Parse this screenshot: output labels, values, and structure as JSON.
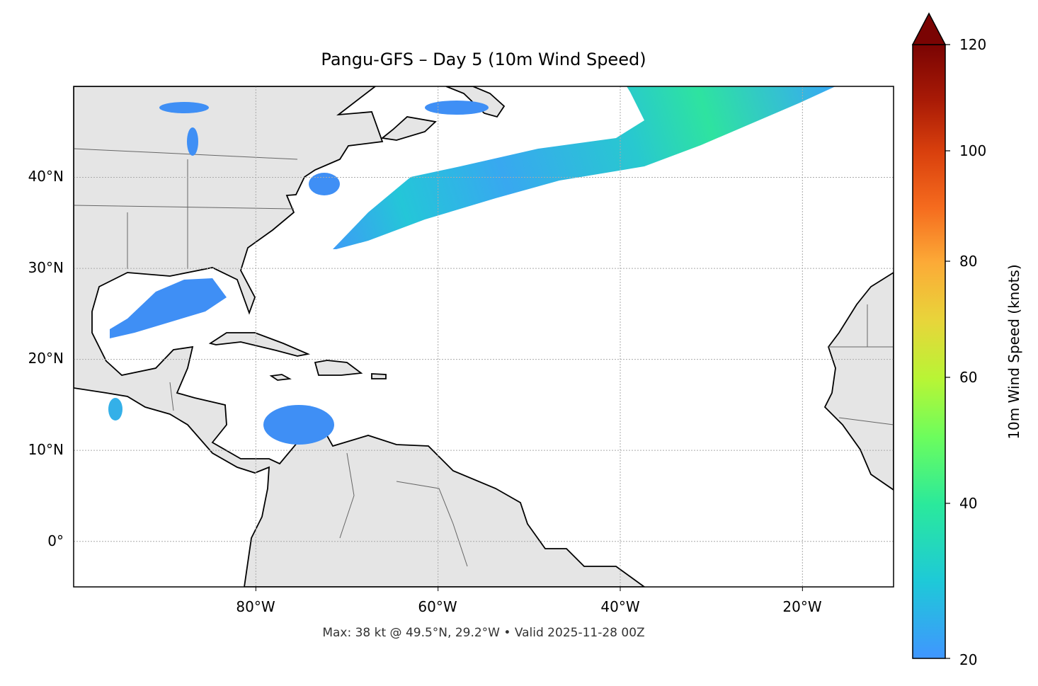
{
  "title": "Pangu-GFS – Day 5 (10m Wind Speed)",
  "footer": "Max: 38 kt @ 49.5°N, 29.2°W • Valid 2025-11-28 00Z",
  "map": {
    "projection": "PlateCarree",
    "extent_lon": [
      -100,
      -10
    ],
    "extent_lat": [
      -5,
      50
    ],
    "gridlines": "dotted",
    "land_color": "#e5e5e5",
    "coastline_color": "#000000",
    "border_color": "#666666",
    "lat_ticks": [
      {
        "value": 40,
        "label": "40°N"
      },
      {
        "value": 30,
        "label": "30°N"
      },
      {
        "value": 20,
        "label": "20°N"
      },
      {
        "value": 10,
        "label": "10°N"
      },
      {
        "value": 0,
        "label": "0°"
      }
    ],
    "lon_ticks": [
      {
        "value": -80,
        "label": "80°W"
      },
      {
        "value": -60,
        "label": "60°W"
      },
      {
        "value": -40,
        "label": "40°W"
      },
      {
        "value": -20,
        "label": "20°W"
      }
    ]
  },
  "colorbar": {
    "label": "10m Wind Speed (knots)",
    "ticks": [
      "20",
      "40",
      "60",
      "80",
      "100",
      "120"
    ],
    "extend": "max",
    "colormap": "turbo",
    "min_color": "#4096ff",
    "max_color": "#7a0403"
  },
  "max_wind": {
    "value_kt": 38,
    "lat": 49.5,
    "lon": -29.2
  }
}
